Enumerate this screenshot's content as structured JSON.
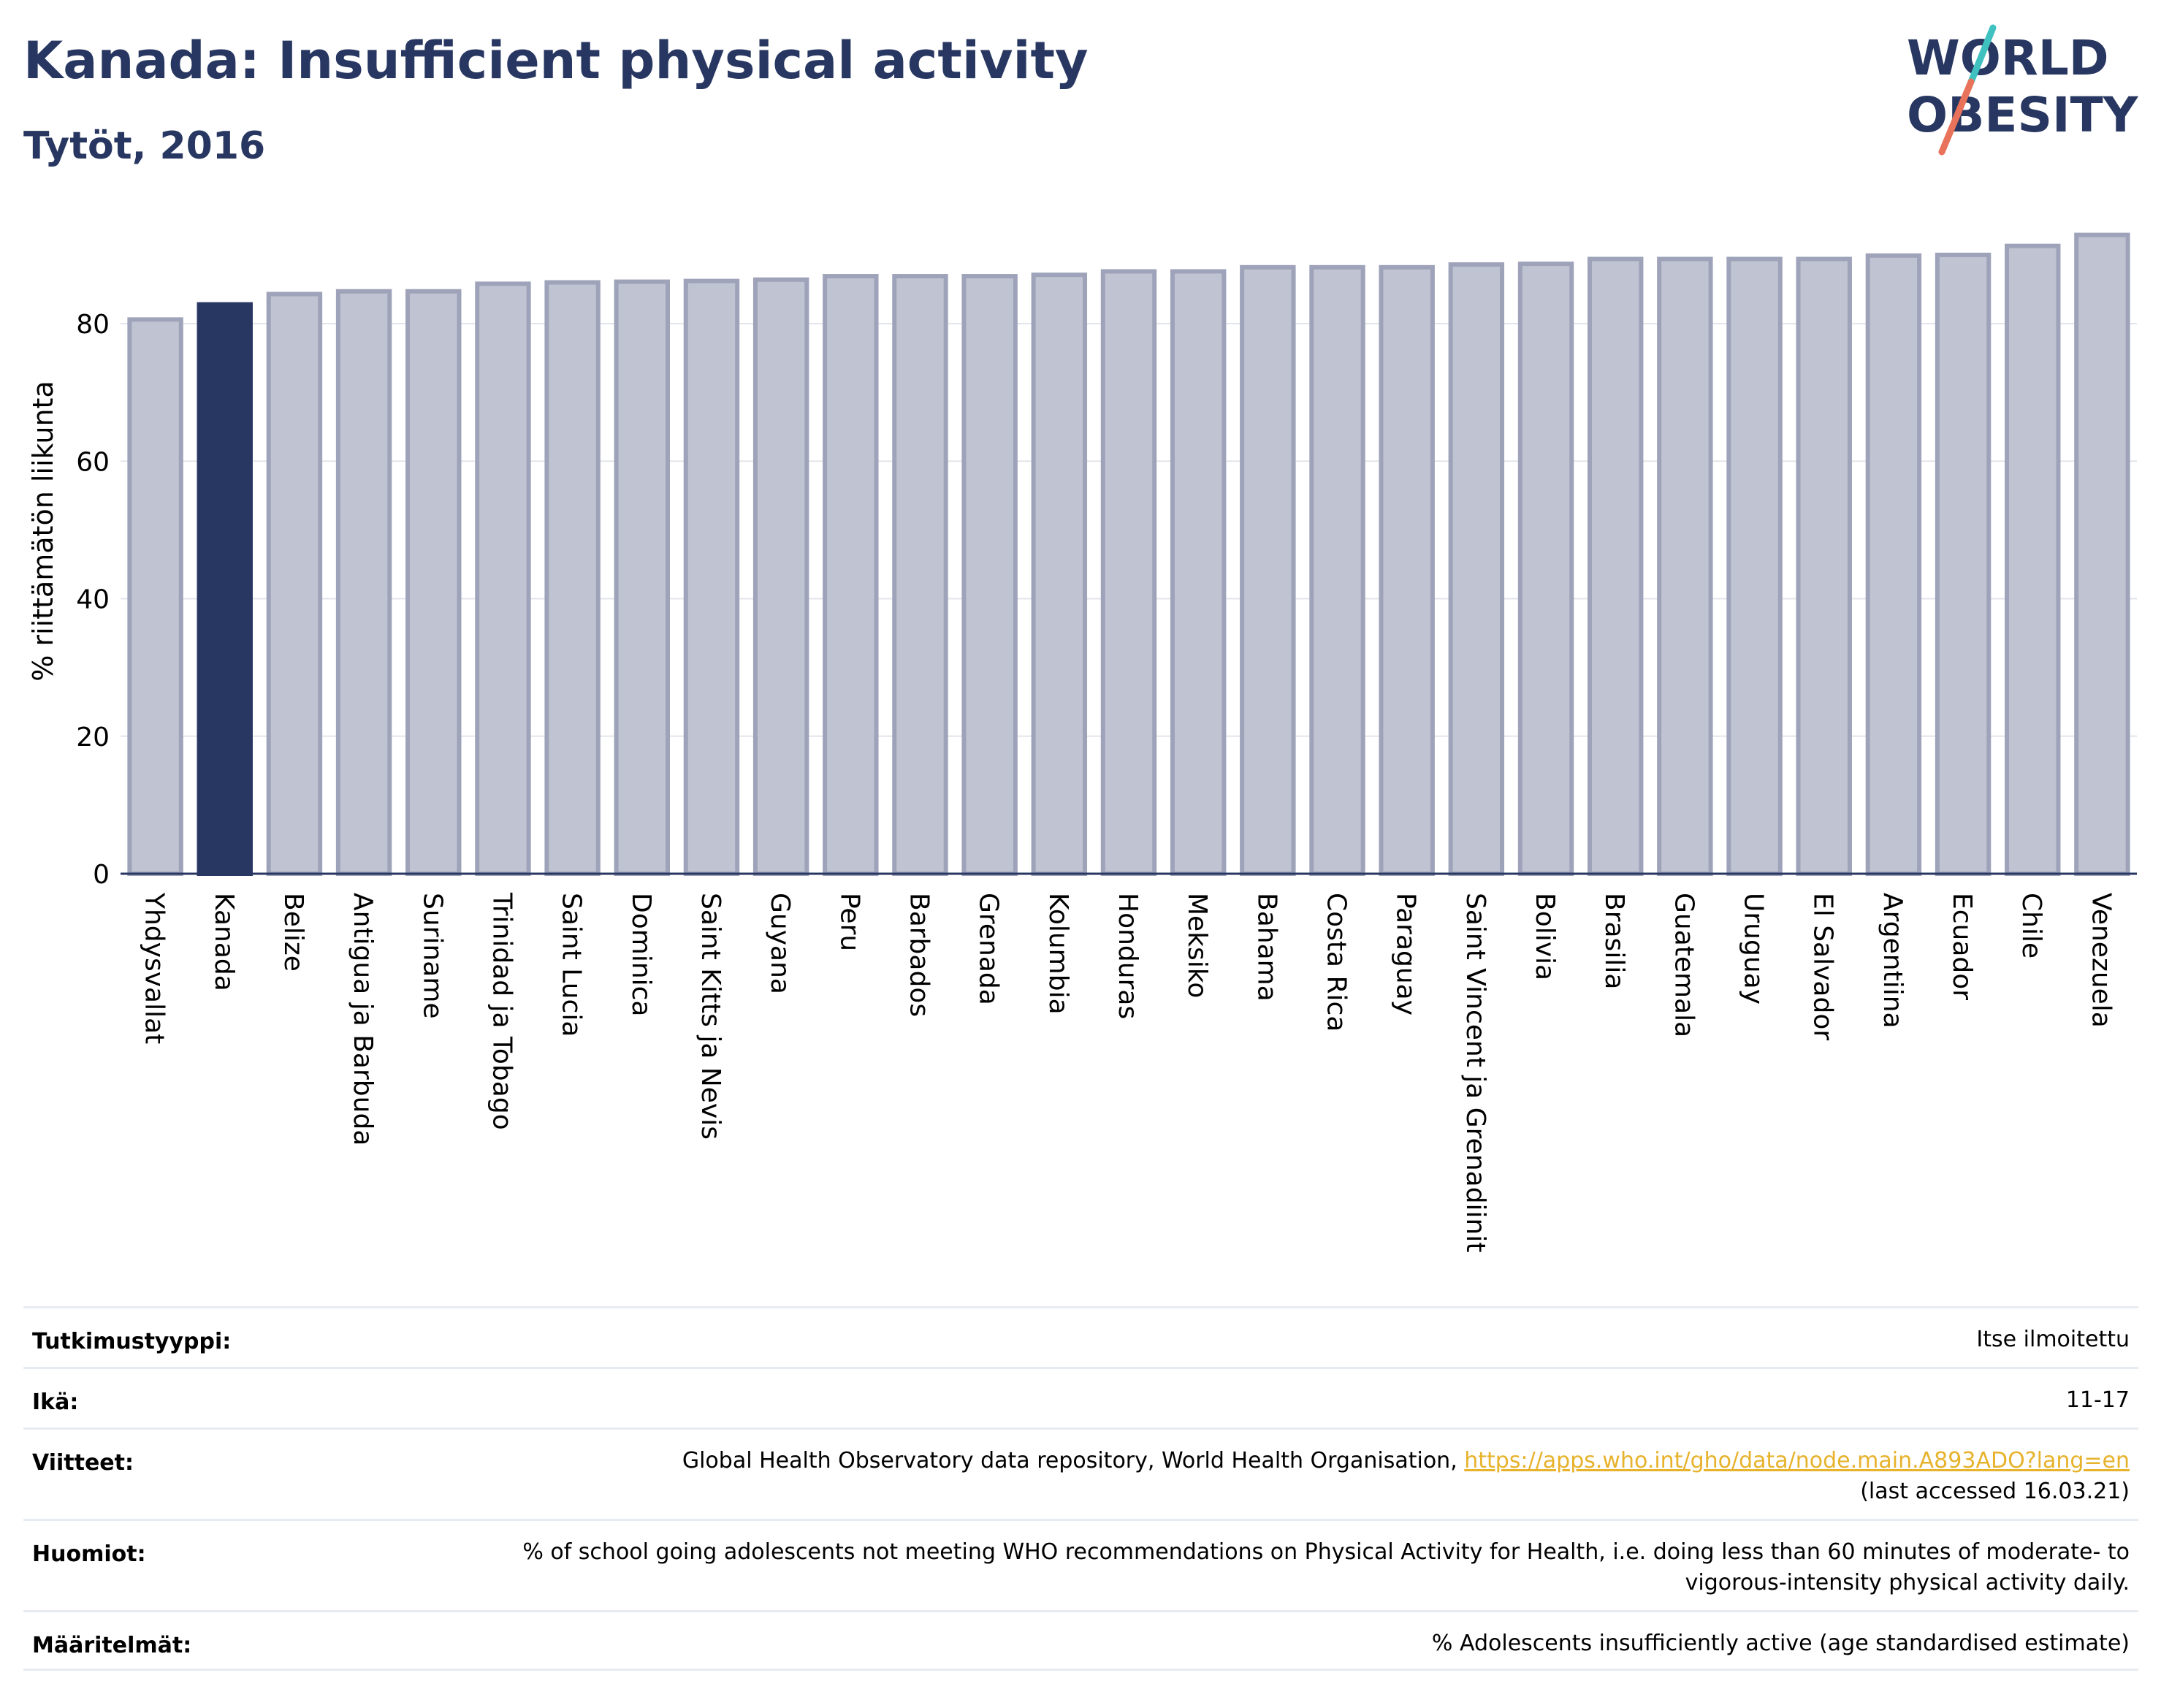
{
  "header": {
    "title": "Kanada: Insufficient physical activity",
    "subtitle": "Tytöt, 2016"
  },
  "logo": {
    "line1": "WORLD",
    "line2": "OBESITY",
    "accent_colors": [
      "#3fc1c0",
      "#e8735a"
    ]
  },
  "colors": {
    "highlight": "#283761",
    "bar_fill": "#c0c3d1",
    "bar_stroke": "#9ea3ba",
    "text": "#283761"
  },
  "chart_data": {
    "type": "bar",
    "ylabel": "% riittämätön liikunta",
    "ylim": [
      0,
      93
    ],
    "yticks": [
      0,
      20,
      40,
      60,
      80
    ],
    "grid": true,
    "highlight": "Kanada",
    "categories": [
      "Yhdysvallat",
      "Kanada",
      "Belize",
      "Antigua ja Barbuda",
      "Suriname",
      "Trinidad ja Tobago",
      "Saint Lucia",
      "Dominica",
      "Saint Kitts ja Nevis",
      "Guyana",
      "Peru",
      "Barbados",
      "Grenada",
      "Kolumbia",
      "Honduras",
      "Meksiko",
      "Bahama",
      "Costa Rica",
      "Paraguay",
      "Saint Vincent ja Grenadiinit",
      "Bolivia",
      "Brasilia",
      "Guatemala",
      "Uruguay",
      "El Salvador",
      "Argentiina",
      "Ecuador",
      "Chile",
      "Venezuela"
    ],
    "values": [
      80.6,
      82.8,
      84.3,
      84.7,
      84.7,
      85.8,
      86.0,
      86.1,
      86.2,
      86.4,
      86.9,
      86.9,
      86.9,
      87.1,
      87.6,
      87.6,
      88.2,
      88.2,
      88.2,
      88.6,
      88.7,
      89.4,
      89.4,
      89.4,
      89.4,
      89.9,
      90.0,
      91.3,
      92.9
    ]
  },
  "meta": {
    "rows": [
      {
        "label": "Tutkimustyyppi:",
        "value": "Itse ilmoitettu"
      },
      {
        "label": "Ikä:",
        "value": "11-17"
      },
      {
        "label": "Viitteet:",
        "value": "Global Health Observatory data repository, World Health Organisation, ",
        "link": "https://apps.who.int/gho/data/node.main.A893ADO?lang=en",
        "value2": "(last accessed 16.03.21)"
      },
      {
        "label": "Huomiot:",
        "value": "% of school going adolescents not meeting WHO recommendations on Physical Activity for Health, i.e. doing less than 60 minutes of moderate- to vigorous-intensity physical activity daily."
      },
      {
        "label": "Määritelmät:",
        "value": "% Adolescents insufficiently active (age standardised estimate)"
      }
    ]
  }
}
